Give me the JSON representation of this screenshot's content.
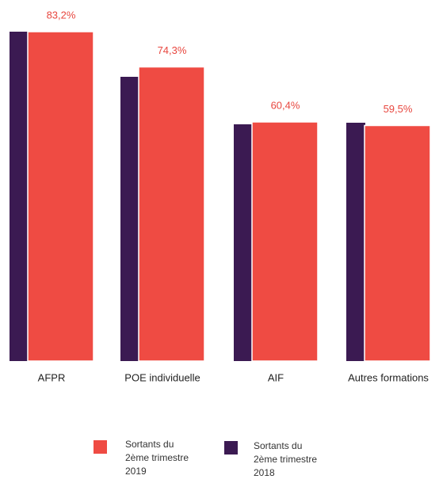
{
  "chart_data": {
    "type": "bar",
    "categories": [
      "AFPR",
      "POE individuelle",
      "AIF",
      "Autres formations"
    ],
    "series": [
      {
        "name": "Sortants du 2ème trimestre 2019",
        "color": "#ef4b43",
        "values": [
          83.2,
          74.3,
          60.4,
          59.5
        ],
        "value_labels": [
          "83,2%",
          "74,3%",
          "60,4%",
          "59,5%"
        ]
      },
      {
        "name": "Sortants du 2ème trimestre 2018",
        "color": "#3b1a52",
        "values": [
          83.2,
          71.8,
          59.8,
          60.2
        ]
      }
    ]
  }
}
